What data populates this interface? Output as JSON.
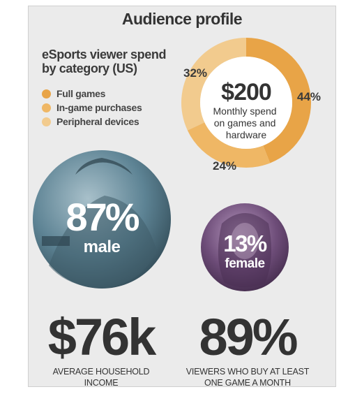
{
  "title": "Audience profile",
  "chart_data": [
    {
      "type": "pie",
      "title": "eSports viewer spend by category (US)",
      "categories": [
        "Full games",
        "In-game purchases",
        "Peripheral devices"
      ],
      "values": [
        44,
        24,
        32
      ],
      "slice_labels": [
        "44%",
        "24%",
        "32%"
      ],
      "colors": [
        "#e8a447",
        "#efb765",
        "#f2cb8e"
      ],
      "center_value": "$200",
      "center_caption": "Monthly spend on games and hardware",
      "center_caption_lines": [
        "Monthly spend",
        "on games and",
        "hardware"
      ],
      "legend_position": "top-left"
    }
  ],
  "legend_title_lines": [
    "eSports viewer spend",
    "by category (US)"
  ],
  "gender": {
    "male": {
      "value": "87%",
      "label": "male",
      "share": 87,
      "color": "#5d8394"
    },
    "female": {
      "value": "13%",
      "label": "female",
      "share": 13,
      "color": "#6e4d79"
    }
  },
  "stats": [
    {
      "value": "$76k",
      "label_lines": [
        "AVERAGE HOUSEHOLD",
        "INCOME"
      ]
    },
    {
      "value": "89%",
      "label_lines": [
        "VIEWERS WHO BUY AT LEAST",
        "ONE GAME A MONTH"
      ]
    }
  ]
}
